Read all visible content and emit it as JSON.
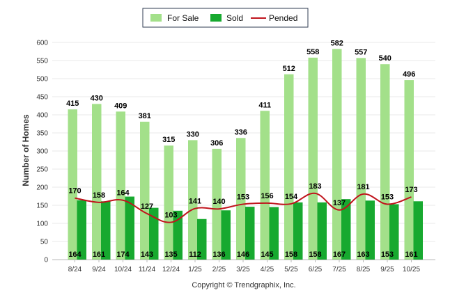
{
  "chart_data": {
    "type": "bar",
    "ylabel": "Number of Homes",
    "ylim": [
      0,
      600
    ],
    "yticks": [
      0,
      50,
      100,
      150,
      200,
      250,
      300,
      350,
      400,
      450,
      500,
      550,
      600
    ],
    "categories": [
      "8/24",
      "9/24",
      "10/24",
      "11/24",
      "12/24",
      "1/25",
      "2/25",
      "3/25",
      "4/25",
      "5/25",
      "6/25",
      "7/25",
      "8/25",
      "9/25",
      "10/25"
    ],
    "series": [
      {
        "name": "For Sale",
        "type": "bar",
        "color": "#a3e08a",
        "values": [
          415,
          430,
          409,
          381,
          315,
          330,
          306,
          336,
          411,
          512,
          558,
          582,
          557,
          540,
          496
        ]
      },
      {
        "name": "Sold",
        "type": "bar",
        "color": "#17a92f",
        "values": [
          164,
          161,
          174,
          143,
          135,
          112,
          136,
          146,
          145,
          158,
          158,
          167,
          163,
          153,
          161
        ]
      },
      {
        "name": "Pended",
        "type": "line",
        "color": "#c0141c",
        "values": [
          170,
          158,
          164,
          127,
          103,
          141,
          140,
          153,
          156,
          154,
          183,
          137,
          181,
          153,
          173
        ]
      }
    ],
    "legend_position": "top-center",
    "grid": true,
    "footer": "Copyright © Trendgraphix, Inc."
  }
}
